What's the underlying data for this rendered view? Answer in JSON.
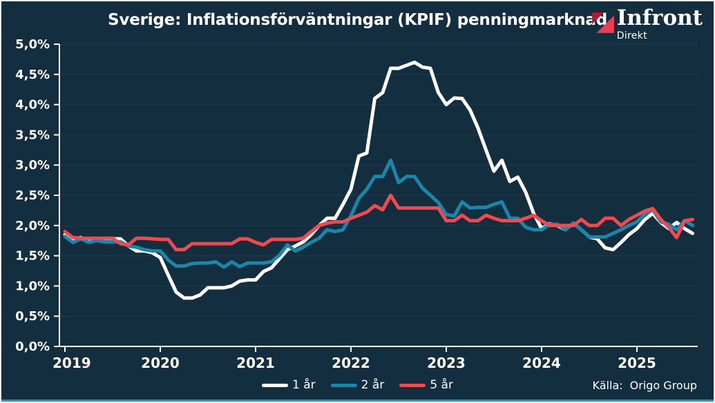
{
  "title": "Sverige: Inflationsförväntningar (KPIF) penningmarknad",
  "logo": {
    "name": "Infront",
    "sub": "Direkt"
  },
  "source": {
    "label": "Källa:",
    "value": "Origo Group"
  },
  "colors": {
    "background": "#132e3f",
    "axis": "#ffffff",
    "accent_bar": "#2796bf",
    "logo_red_dark": "#c01334",
    "logo_red_bright": "#ef3c55"
  },
  "chart_data": {
    "type": "line",
    "title": "Sverige: Inflationsförväntningar (KPIF) penningmarknad",
    "xlabel": "",
    "ylabel": "",
    "ylim": [
      0,
      5
    ],
    "grid": true,
    "legend_position": "bottom",
    "x_start_year": 2019,
    "x_points_per_year": 12,
    "x_tick_labels": [
      "2019",
      "2020",
      "2021",
      "2022",
      "2023",
      "2024",
      "2025"
    ],
    "y_tick_labels": [
      "0,0%",
      "0,5%",
      "1,0%",
      "1,5%",
      "2,0%",
      "2,5%",
      "3,0%",
      "3,5%",
      "4,0%",
      "4,5%",
      "5,0%"
    ],
    "series": [
      {
        "name": "1 år",
        "color": "#ffffff",
        "values": [
          1.85,
          1.78,
          1.8,
          1.73,
          1.78,
          1.75,
          1.78,
          1.78,
          1.66,
          1.58,
          1.58,
          1.55,
          1.47,
          1.18,
          0.9,
          0.8,
          0.8,
          0.85,
          0.97,
          0.97,
          0.97,
          1.0,
          1.08,
          1.1,
          1.1,
          1.24,
          1.3,
          1.45,
          1.6,
          1.66,
          1.73,
          1.85,
          2.0,
          2.12,
          2.12,
          2.35,
          2.6,
          3.15,
          3.2,
          4.1,
          4.2,
          4.6,
          4.6,
          4.65,
          4.7,
          4.62,
          4.6,
          4.2,
          4.0,
          4.11,
          4.1,
          3.91,
          3.61,
          3.25,
          2.9,
          3.08,
          2.73,
          2.8,
          2.55,
          2.2,
          1.95,
          2.03,
          2.0,
          1.93,
          2.04,
          1.93,
          1.81,
          1.78,
          1.63,
          1.6,
          1.72,
          1.85,
          1.95,
          2.1,
          2.2,
          2.05,
          1.95,
          2.05,
          1.95,
          1.87
        ]
      },
      {
        "name": "2 år",
        "color": "#1887ab",
        "values": [
          1.82,
          1.72,
          1.78,
          1.72,
          1.75,
          1.73,
          1.73,
          1.73,
          1.66,
          1.64,
          1.6,
          1.58,
          1.58,
          1.43,
          1.33,
          1.33,
          1.37,
          1.38,
          1.38,
          1.4,
          1.31,
          1.4,
          1.32,
          1.38,
          1.38,
          1.38,
          1.4,
          1.51,
          1.68,
          1.58,
          1.64,
          1.72,
          1.79,
          1.93,
          1.9,
          1.93,
          2.16,
          2.45,
          2.6,
          2.81,
          2.81,
          3.08,
          2.71,
          2.81,
          2.81,
          2.62,
          2.5,
          2.38,
          2.18,
          2.16,
          2.39,
          2.29,
          2.3,
          2.3,
          2.35,
          2.39,
          2.12,
          2.12,
          1.97,
          1.93,
          1.93,
          2.02,
          2.02,
          1.93,
          2.04,
          1.93,
          1.81,
          1.81,
          1.81,
          1.87,
          1.93,
          2.0,
          2.06,
          2.19,
          2.26,
          2.06,
          2.02,
          1.93,
          2.08,
          2.0
        ]
      },
      {
        "name": "5 år",
        "color": "#f2494e",
        "values": [
          1.9,
          1.8,
          1.79,
          1.79,
          1.79,
          1.79,
          1.79,
          1.7,
          1.68,
          1.79,
          1.79,
          1.78,
          1.77,
          1.77,
          1.6,
          1.6,
          1.7,
          1.7,
          1.7,
          1.7,
          1.7,
          1.7,
          1.78,
          1.78,
          1.72,
          1.68,
          1.77,
          1.77,
          1.77,
          1.77,
          1.79,
          1.9,
          2.0,
          2.04,
          2.06,
          2.06,
          2.12,
          2.17,
          2.22,
          2.33,
          2.26,
          2.5,
          2.29,
          2.29,
          2.29,
          2.29,
          2.29,
          2.29,
          2.08,
          2.08,
          2.17,
          2.08,
          2.08,
          2.17,
          2.12,
          2.08,
          2.08,
          2.08,
          2.12,
          2.17,
          2.08,
          2.0,
          2.0,
          2.0,
          2.0,
          2.1,
          2.0,
          2.0,
          2.12,
          2.12,
          2.0,
          2.1,
          2.17,
          2.24,
          2.28,
          2.1,
          1.97,
          1.8,
          2.08,
          2.1
        ]
      }
    ]
  }
}
